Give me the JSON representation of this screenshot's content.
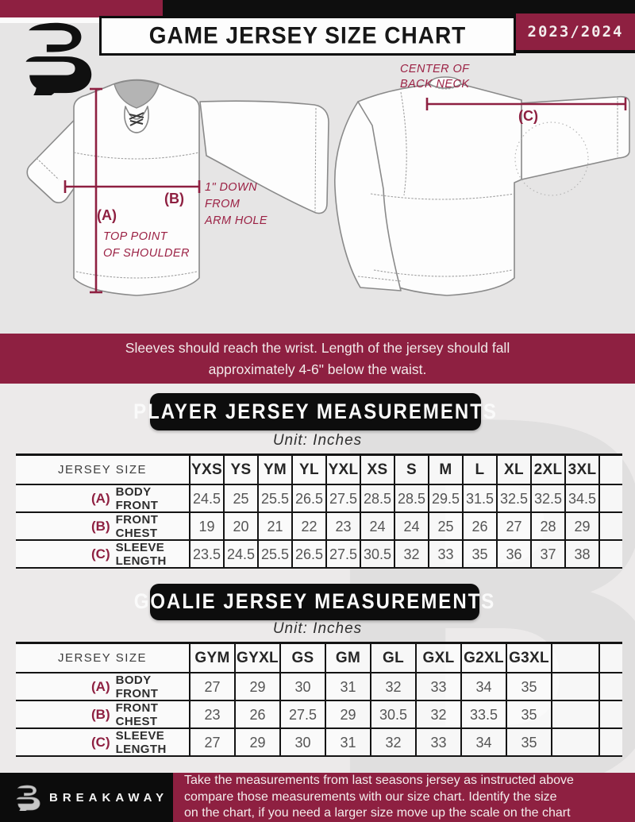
{
  "colors": {
    "maroon": "#8e2041",
    "black": "#0d0d0d",
    "page_bg": "#eceaea"
  },
  "header": {
    "title": "GAME JERSEY SIZE CHART",
    "season": "2023/2024"
  },
  "diagram": {
    "front": {
      "a_key": "(A)",
      "a_note": "TOP POINT\nOF SHOULDER",
      "b_key": "(B)",
      "b_note": "1\" DOWN\nFROM\nARM HOLE"
    },
    "back": {
      "c_key": "(C)",
      "c_note": "CENTER OF\nBACK NECK"
    }
  },
  "fit_note": "Sleeves should reach the wrist. Length of the jersey should fall\napproximately 4-6\" below the waist.",
  "player_table": {
    "title": "PLAYER JERSEY MEASUREMENTS",
    "unit": "Unit: Inches",
    "size_header": "JERSEY SIZE",
    "sizes": [
      "YXS",
      "YS",
      "YM",
      "YL",
      "YXL",
      "XS",
      "S",
      "M",
      "L",
      "XL",
      "2XL",
      "3XL"
    ],
    "trailing_empty_col": false,
    "rows": [
      {
        "key": "(A)",
        "label": "BODY FRONT",
        "values": [
          "24.5",
          "25",
          "25.5",
          "26.5",
          "27.5",
          "28.5",
          "28.5",
          "29.5",
          "31.5",
          "32.5",
          "32.5",
          "34.5"
        ]
      },
      {
        "key": "(B)",
        "label": "FRONT CHEST",
        "values": [
          "19",
          "20",
          "21",
          "22",
          "23",
          "24",
          "24",
          "25",
          "26",
          "27",
          "28",
          "29"
        ]
      },
      {
        "key": "(C)",
        "label": "SLEEVE LENGTH",
        "values": [
          "23.5",
          "24.5",
          "25.5",
          "26.5",
          "27.5",
          "30.5",
          "32",
          "33",
          "35",
          "36",
          "37",
          "38"
        ]
      }
    ]
  },
  "goalie_table": {
    "title": "GOALIE JERSEY MEASUREMENTS",
    "unit": "Unit: Inches",
    "size_header": "JERSEY SIZE",
    "sizes": [
      "GYM",
      "GYXL",
      "GS",
      "GM",
      "GL",
      "GXL",
      "G2XL",
      "G3XL"
    ],
    "trailing_empty_col": true,
    "rows": [
      {
        "key": "(A)",
        "label": "BODY FRONT",
        "values": [
          "27",
          "29",
          "30",
          "31",
          "32",
          "33",
          "34",
          "35"
        ]
      },
      {
        "key": "(B)",
        "label": "FRONT CHEST",
        "values": [
          "23",
          "26",
          "27.5",
          "29",
          "30.5",
          "32",
          "33.5",
          "35"
        ]
      },
      {
        "key": "(C)",
        "label": "SLEEVE LENGTH",
        "values": [
          "27",
          "29",
          "30",
          "31",
          "32",
          "33",
          "34",
          "35"
        ]
      }
    ]
  },
  "footer": {
    "brand": "BREAKAWAY",
    "note": "Take the measurements from last seasons jersey as instructed above\ncompare those measurements  with our size chart. Identify the size\non the chart, if you need a larger size move up the scale on the chart"
  },
  "watermark": "B"
}
